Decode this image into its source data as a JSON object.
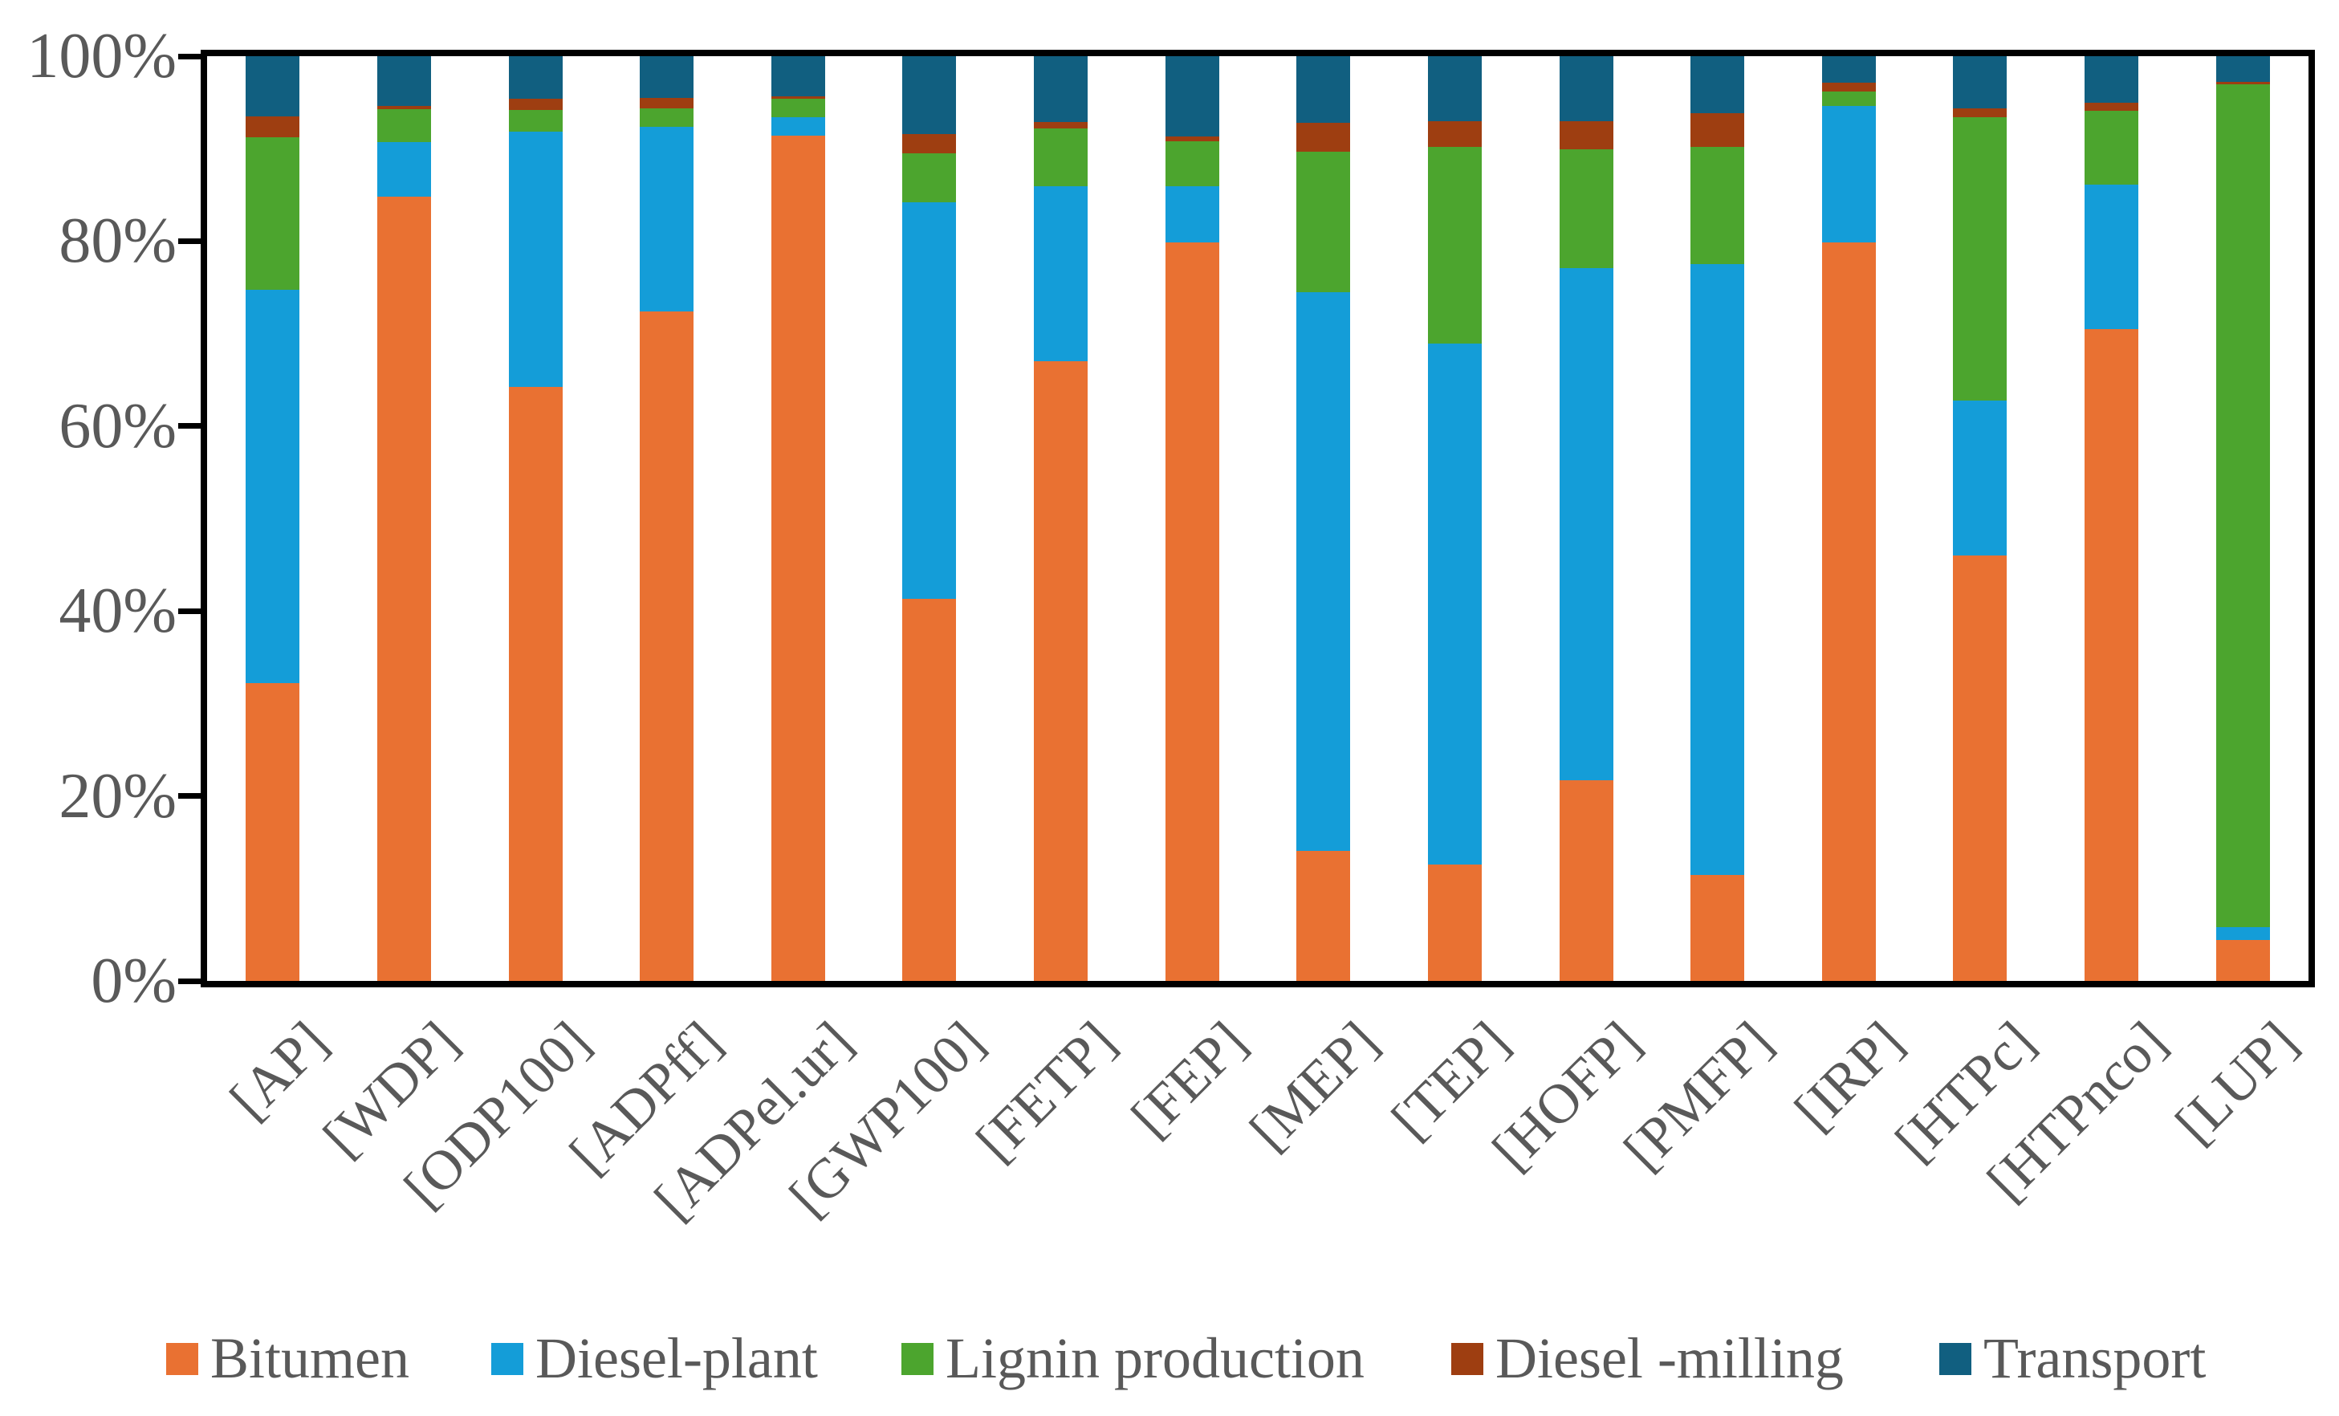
{
  "chart_data": {
    "type": "bar",
    "variant": "stacked-100-percent",
    "title": "",
    "xlabel": "",
    "ylabel": "",
    "grid": false,
    "legend_position": "bottom",
    "y_axis": {
      "min": 0,
      "max": 100,
      "tick_step": 20,
      "ticks": [
        "0%",
        "20%",
        "40%",
        "60%",
        "80%",
        "100%"
      ]
    },
    "categories": [
      "[AP]",
      "[WDP]",
      "[ODP100]",
      "[ADPff]",
      "[ADPel.ur]",
      "[GWP100]",
      "[FETP]",
      "[FEP]",
      "[MEP]",
      "[TEP]",
      "[HOFP]",
      "[PMFP]",
      "[IRP]",
      "[HTPc]",
      "[HTPnco]",
      "[LUP]"
    ],
    "series": [
      {
        "name": "Bitumen",
        "color": "#E97132",
        "values": [
          32.2,
          84.8,
          64.2,
          72.4,
          91.4,
          41.3,
          67.0,
          79.9,
          14.1,
          12.6,
          21.7,
          11.5,
          79.9,
          46.0,
          70.5,
          4.4
        ]
      },
      {
        "name": "Diesel-plant",
        "color": "#149DD8",
        "values": [
          42.5,
          5.9,
          27.6,
          20.0,
          2.0,
          42.9,
          18.9,
          6.0,
          60.4,
          56.3,
          55.4,
          66.0,
          14.7,
          16.8,
          15.6,
          1.4
        ]
      },
      {
        "name": "Lignin production",
        "color": "#4CA52E",
        "values": [
          16.5,
          3.6,
          2.4,
          2.0,
          2.0,
          5.3,
          6.3,
          4.9,
          15.2,
          21.3,
          12.8,
          12.7,
          1.6,
          30.6,
          8.0,
          91.2
        ]
      },
      {
        "name": "Diesel -milling",
        "color": "#9E3E11",
        "values": [
          2.3,
          0.3,
          1.2,
          1.1,
          0.3,
          2.1,
          0.7,
          0.5,
          3.1,
          2.8,
          3.1,
          3.6,
          0.9,
          1.0,
          0.9,
          0.2
        ]
      },
      {
        "name": "Transport",
        "color": "#115F80",
        "values": [
          6.5,
          5.4,
          4.6,
          4.5,
          4.3,
          8.4,
          7.1,
          8.7,
          7.2,
          7.0,
          7.0,
          6.2,
          2.9,
          5.6,
          5.0,
          2.8
        ]
      }
    ],
    "colors": {
      "axis_text": "#595959",
      "frame": "#000000",
      "background": "#FFFFFF"
    }
  }
}
